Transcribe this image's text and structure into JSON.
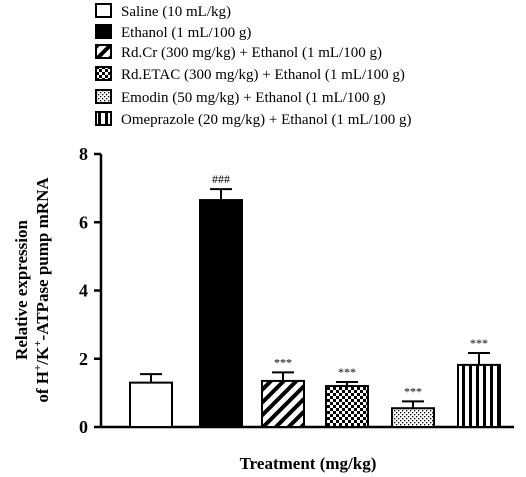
{
  "chart_data": {
    "type": "bar",
    "xlabel": "Treatment (mg/kg)",
    "ylabel_line1": "Relative expression",
    "ylabel_line2_parts": [
      "of H",
      "+",
      "/K",
      "+",
      "-ATPase pump mRNA"
    ],
    "ylim": [
      0,
      8
    ],
    "yticks": [
      "0",
      "2",
      "4",
      "6",
      "8"
    ],
    "legend": [
      {
        "label": "Saline (10 mL/kg)",
        "pattern": "open"
      },
      {
        "label": "Ethanol (1 mL/100 g)",
        "pattern": "solid"
      },
      {
        "label": "Rd.Cr (300 mg/kg) + Ethanol (1 mL/100 g)",
        "pattern": "diagonal"
      },
      {
        "label": "Rd.ETAC (300 mg/kg) + Ethanol (1 mL/100 g)",
        "pattern": "checker"
      },
      {
        "label": "Emodin (50 mg/kg) + Ethanol (1 mL/100 g)",
        "pattern": "dots"
      },
      {
        "label": "Omeprazole (20 mg/kg) + Ethanol (1 mL/100 g)",
        "pattern": "vertical"
      }
    ],
    "series": [
      {
        "name": "Saline (10 mL/kg)",
        "value": 1.3,
        "error": 0.25,
        "sig": ""
      },
      {
        "name": "Ethanol (1 mL/100 g)",
        "value": 6.65,
        "error": 0.32,
        "sig": "###"
      },
      {
        "name": "Rd.Cr (300 mg/kg) + Ethanol (1 mL/100 g)",
        "value": 1.35,
        "error": 0.25,
        "sig": "***"
      },
      {
        "name": "Rd.ETAC (300 mg/kg) + Ethanol (1 mL/100 g)",
        "value": 1.2,
        "error": 0.12,
        "sig": "***"
      },
      {
        "name": "Emodin (50 mg/kg) + Ethanol (1 mL/100 g)",
        "value": 0.55,
        "error": 0.2,
        "sig": "***"
      },
      {
        "name": "Omeprazole (20 mg/kg) + Ethanol (1 mL/100 g)",
        "value": 1.82,
        "error": 0.35,
        "sig": "***"
      }
    ]
  }
}
